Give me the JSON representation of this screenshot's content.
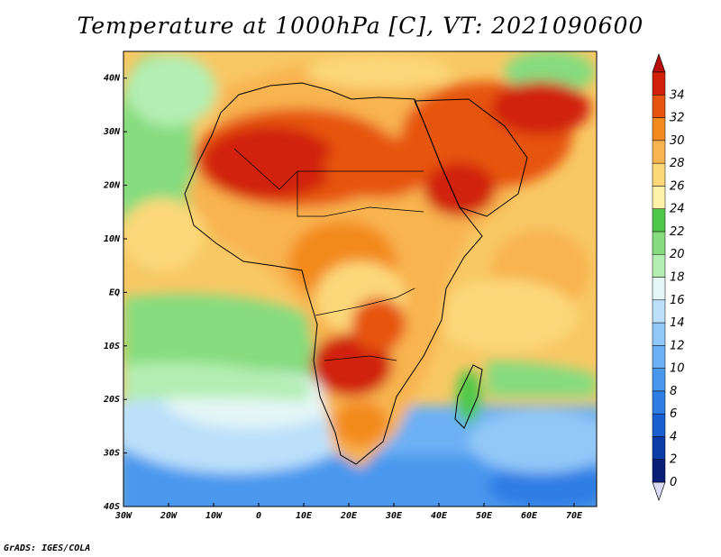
{
  "title": "Temperature at 1000hPa [C], VT: 2021090600",
  "footer": "GrADS: IGES/COLA",
  "map": {
    "lon_range": [
      -30,
      75
    ],
    "lat_range": [
      -40,
      45
    ],
    "lon_ticks": [
      {
        "value": -30,
        "label": "30W"
      },
      {
        "value": -20,
        "label": "20W"
      },
      {
        "value": -10,
        "label": "10W"
      },
      {
        "value": 0,
        "label": "0"
      },
      {
        "value": 10,
        "label": "10E"
      },
      {
        "value": 20,
        "label": "20E"
      },
      {
        "value": 30,
        "label": "30E"
      },
      {
        "value": 40,
        "label": "40E"
      },
      {
        "value": 50,
        "label": "50E"
      },
      {
        "value": 60,
        "label": "60E"
      },
      {
        "value": 70,
        "label": "70E"
      }
    ],
    "lat_ticks": [
      {
        "value": 40,
        "label": "40N"
      },
      {
        "value": 30,
        "label": "30N"
      },
      {
        "value": 20,
        "label": "20N"
      },
      {
        "value": 10,
        "label": "10N"
      },
      {
        "value": 0,
        "label": "EQ"
      },
      {
        "value": -10,
        "label": "10S"
      },
      {
        "value": -20,
        "label": "20S"
      },
      {
        "value": -30,
        "label": "30S"
      },
      {
        "value": -40,
        "label": "40S"
      }
    ]
  },
  "colorbar": {
    "labels": [
      "0",
      "2",
      "4",
      "6",
      "8",
      "10",
      "12",
      "14",
      "16",
      "18",
      "20",
      "22",
      "24",
      "26",
      "28",
      "30",
      "32",
      "34"
    ],
    "colors": [
      "#0a1e78",
      "#0c3ca8",
      "#1a5fd0",
      "#2e7ee4",
      "#4a98ee",
      "#6cb0f4",
      "#92c8f8",
      "#bce0fa",
      "#e4f6f6",
      "#b4eeb2",
      "#86dc7e",
      "#4ec84a",
      "#fff2a8",
      "#fcd879",
      "#f8b450",
      "#f38a1e",
      "#e65410",
      "#d0200a"
    ],
    "under_color": "#dcdcf8",
    "over_color": "#b80f0a"
  }
}
